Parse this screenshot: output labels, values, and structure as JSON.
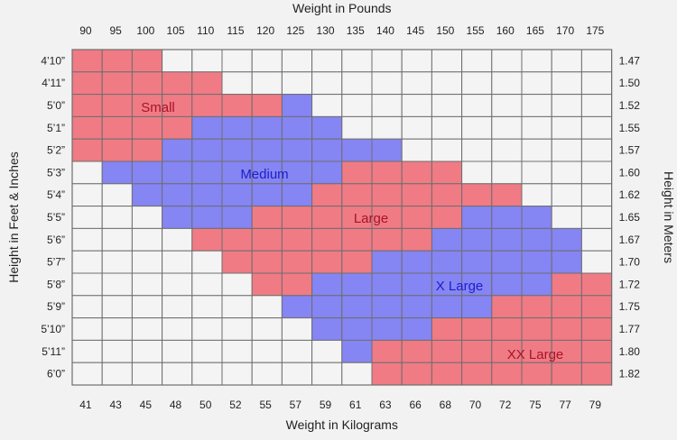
{
  "chart_data": {
    "type": "heatmap",
    "title": "",
    "xlabel_top": "Weight in Pounds",
    "xlabel_bottom": "Weight in Kilograms",
    "ylabel_left": "Height in Feet & Inches",
    "ylabel_right": "Height in Meters",
    "x_pounds": [
      "90",
      "95",
      "100",
      "105",
      "110",
      "115",
      "120",
      "125",
      "130",
      "135",
      "140",
      "145",
      "150",
      "155",
      "160",
      "165",
      "170",
      "175"
    ],
    "x_kilograms": [
      "41",
      "43",
      "45",
      "48",
      "50",
      "52",
      "55",
      "57",
      "59",
      "61",
      "63",
      "66",
      "68",
      "70",
      "72",
      "75",
      "77",
      "79"
    ],
    "y_feet_inches": [
      "4’10”",
      "4’11”",
      "5’0”",
      "5’1”",
      "5’2”",
      "5’3”",
      "5’4”",
      "5’5”",
      "5’6”",
      "5’7”",
      "5’8”",
      "5’9”",
      "5’10”",
      "5’11”",
      "6’0”"
    ],
    "y_meters": [
      "1.47",
      "1.50",
      "1.52",
      "1.55",
      "1.57",
      "1.60",
      "1.62",
      "1.65",
      "1.67",
      "1.70",
      "1.72",
      "1.75",
      "1.77",
      "1.80",
      "1.82"
    ],
    "categories": [
      "Small",
      "Medium",
      "Large",
      "X Large",
      "XX Large"
    ],
    "colors": {
      "Small": "#f07b84",
      "Medium": "#8585f4",
      "Large": "#f07b84",
      "X Large": "#8585f4",
      "XX Large": "#f07b84",
      "none": "#f4f4f4",
      "grid": "#6e6e6e",
      "label_red": "#a8132a",
      "label_blue": "#1e1ec8"
    },
    "size_ranges_by_height": [
      {
        "height": "4’10”",
        "Small": [
          "90",
          "100"
        ]
      },
      {
        "height": "4’11”",
        "Small": [
          "90",
          "110"
        ]
      },
      {
        "height": "5’0”",
        "Small": [
          "90",
          "120"
        ],
        "Medium": [
          "125",
          "125"
        ]
      },
      {
        "height": "5’1”",
        "Small": [
          "90",
          "105"
        ],
        "Medium": [
          "110",
          "130"
        ]
      },
      {
        "height": "5’2”",
        "Small": [
          "90",
          "100"
        ],
        "Medium": [
          "105",
          "140"
        ]
      },
      {
        "height": "5’3”",
        "Medium": [
          "95",
          "130"
        ],
        "Large": [
          "135",
          "150"
        ]
      },
      {
        "height": "5’4”",
        "Medium": [
          "100",
          "125"
        ],
        "Large": [
          "130",
          "160"
        ]
      },
      {
        "height": "5’5”",
        "Medium": [
          "105",
          "115"
        ],
        "Large": [
          "120",
          "150"
        ],
        "X Large": [
          "155",
          "165"
        ]
      },
      {
        "height": "5’6”",
        "Large": [
          "110",
          "145"
        ],
        "X Large": [
          "150",
          "170"
        ]
      },
      {
        "height": "5’7”",
        "Large": [
          "115",
          "135"
        ],
        "X Large": [
          "140",
          "170"
        ]
      },
      {
        "height": "5’8”",
        "Large": [
          "120",
          "125"
        ],
        "X Large": [
          "130",
          "165"
        ],
        "XX Large": [
          "170",
          "175"
        ]
      },
      {
        "height": "5’9”",
        "X Large": [
          "125",
          "155"
        ],
        "XX Large": [
          "160",
          "175"
        ]
      },
      {
        "height": "5’10”",
        "X Large": [
          "130",
          "145"
        ],
        "XX Large": [
          "150",
          "175"
        ]
      },
      {
        "height": "5’11”",
        "X Large": [
          "135",
          "135"
        ],
        "XX Large": [
          "140",
          "175"
        ]
      },
      {
        "height": "6’0”",
        "XX Large": [
          "140",
          "175"
        ]
      }
    ]
  }
}
